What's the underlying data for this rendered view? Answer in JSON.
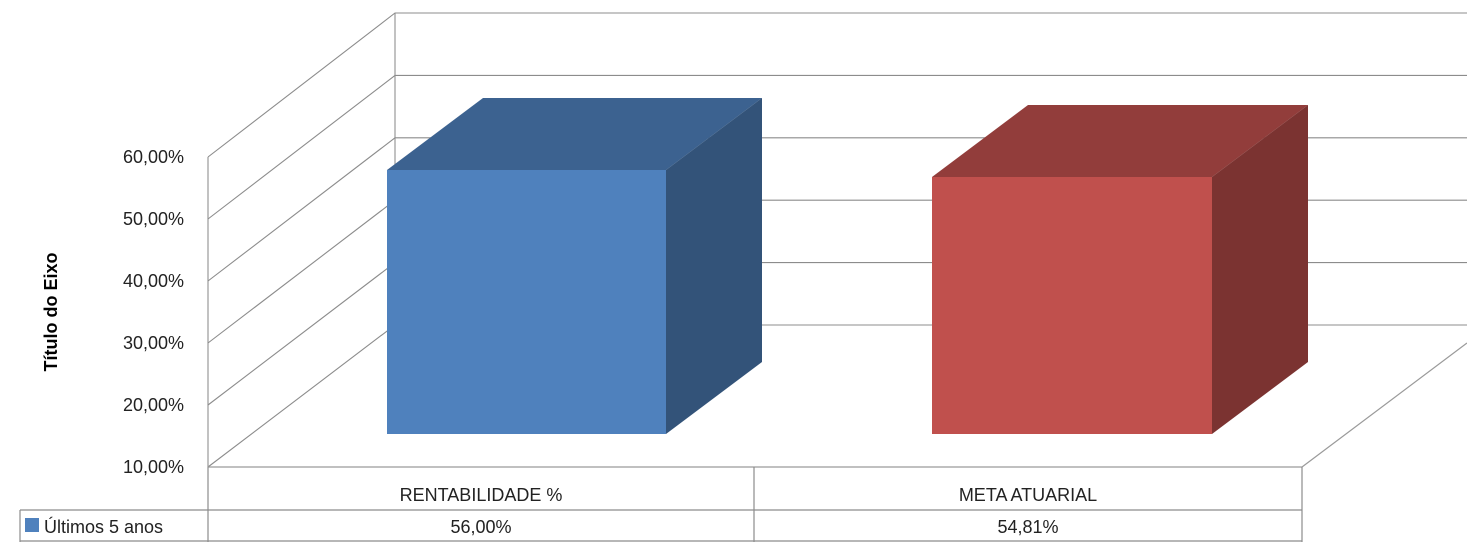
{
  "chart_data": {
    "type": "bar",
    "three_d": true,
    "title": "",
    "xlabel": "",
    "ylabel": "Título do Eixo",
    "ylim": [
      10,
      60
    ],
    "yticks": [
      10,
      20,
      30,
      40,
      50,
      60
    ],
    "ytick_labels": [
      "10,00%",
      "20,00%",
      "30,00%",
      "40,00%",
      "50,00%",
      "60,00%"
    ],
    "grid": true,
    "legend": "data-table",
    "categories": [
      "RENTABILIDADE %",
      "META ATUARIAL"
    ],
    "series": [
      {
        "name": "Últimos 5 anos",
        "values": [
          56.0,
          54.81
        ],
        "value_labels": [
          "56,00%",
          "54,81%"
        ],
        "colors": [
          "#4F81BD",
          "#C0504D"
        ]
      }
    ],
    "legend_color": "#4F81BD"
  }
}
